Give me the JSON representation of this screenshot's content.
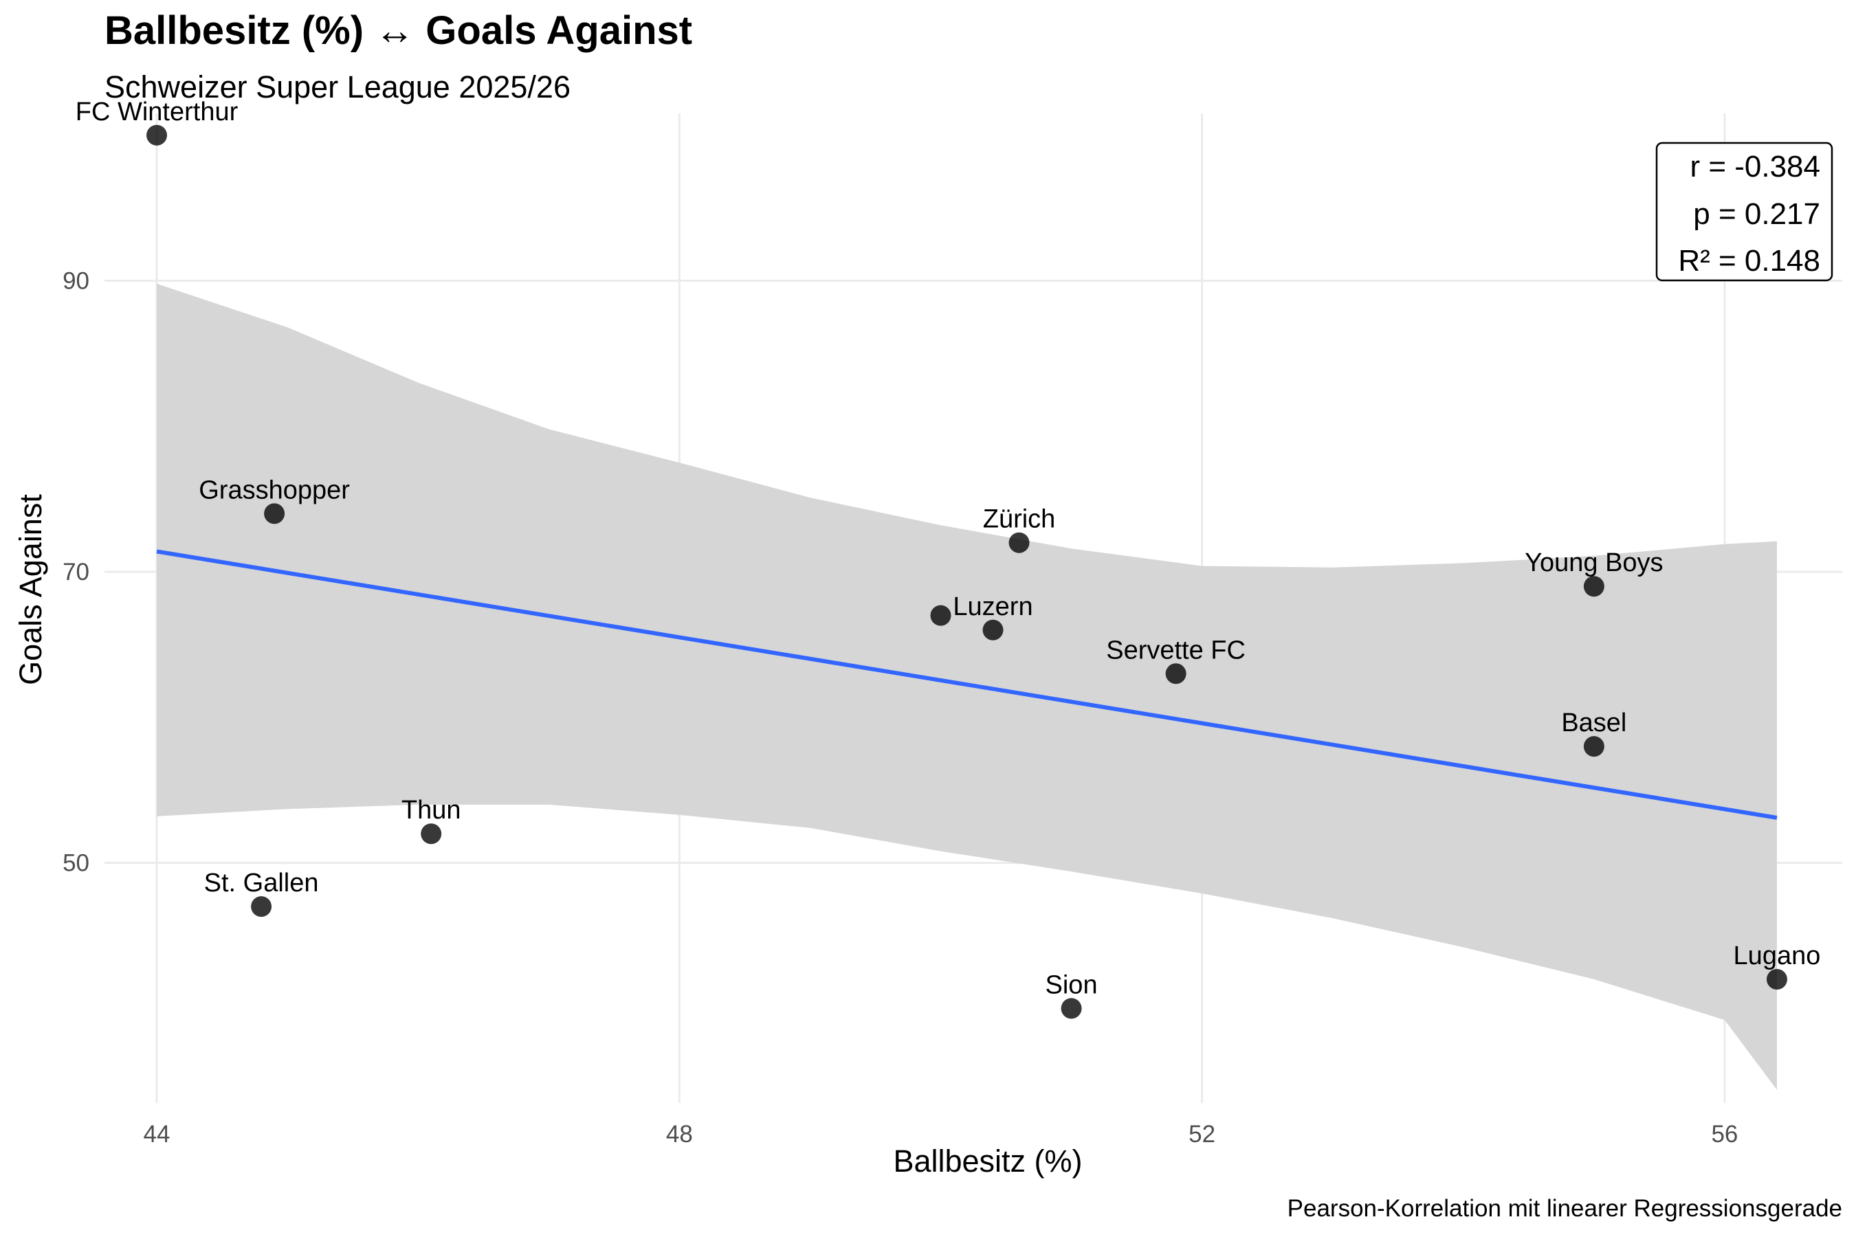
{
  "chart_data": {
    "type": "scatter",
    "title": "Ballbesitz (%) ↔ Goals Against",
    "subtitle": "Schweizer Super League 2025/26",
    "xlabel": "Ballbesitz (%)",
    "ylabel": "Goals Against",
    "caption": "Pearson-Korrelation mit linearer Regressionsgerade",
    "xlim": [
      43.6,
      56.9
    ],
    "ylim": [
      33.5,
      101.5
    ],
    "x_ticks": [
      "44",
      "48",
      "52",
      "56"
    ],
    "y_ticks": [
      "50",
      "70",
      "90"
    ],
    "grid": true,
    "points": [
      {
        "team": "FC Winterthur",
        "x": 44.0,
        "y": 100
      },
      {
        "team": "Grasshopper",
        "x": 44.9,
        "y": 74
      },
      {
        "team": "Thun",
        "x": 46.1,
        "y": 52
      },
      {
        "team": "St. Gallen",
        "x": 44.8,
        "y": 47
      },
      {
        "team": "Zürich",
        "x": 50.6,
        "y": 72
      },
      {
        "team": "",
        "x": 50.0,
        "y": 67
      },
      {
        "team": "Luzern",
        "x": 50.4,
        "y": 66
      },
      {
        "team": "Servette FC",
        "x": 51.8,
        "y": 63
      },
      {
        "team": "Sion",
        "x": 51.0,
        "y": 40
      },
      {
        "team": "Young Boys",
        "x": 55.0,
        "y": 69
      },
      {
        "team": "Basel",
        "x": 55.0,
        "y": 58
      },
      {
        "team": "Lugano",
        "x": 56.4,
        "y": 42
      }
    ],
    "regression": {
      "x": [
        44.0,
        56.4
      ],
      "y": [
        71.4,
        53.1
      ],
      "color": "#3366ff"
    },
    "confidence_band": {
      "x": [
        44.0,
        45.0,
        46.0,
        47.0,
        48.0,
        49.0,
        50.0,
        51.0,
        52.0,
        53.0,
        54.0,
        55.0,
        56.0,
        56.4
      ],
      "upper": [
        89.8,
        86.8,
        83.0,
        79.8,
        77.5,
        75.1,
        73.2,
        71.6,
        70.4,
        70.3,
        70.6,
        71.1,
        71.9,
        72.1
      ],
      "lower": [
        53.2,
        53.7,
        54.0,
        54.0,
        53.3,
        52.4,
        50.8,
        49.4,
        47.9,
        46.2,
        44.2,
        42.0,
        39.2,
        34.4
      ],
      "color": "#d6d6d6"
    },
    "stats": {
      "r": "r = -0.384",
      "p": "p = 0.217",
      "r2": "R² = 0.148"
    },
    "stats_placement": "top-right"
  }
}
